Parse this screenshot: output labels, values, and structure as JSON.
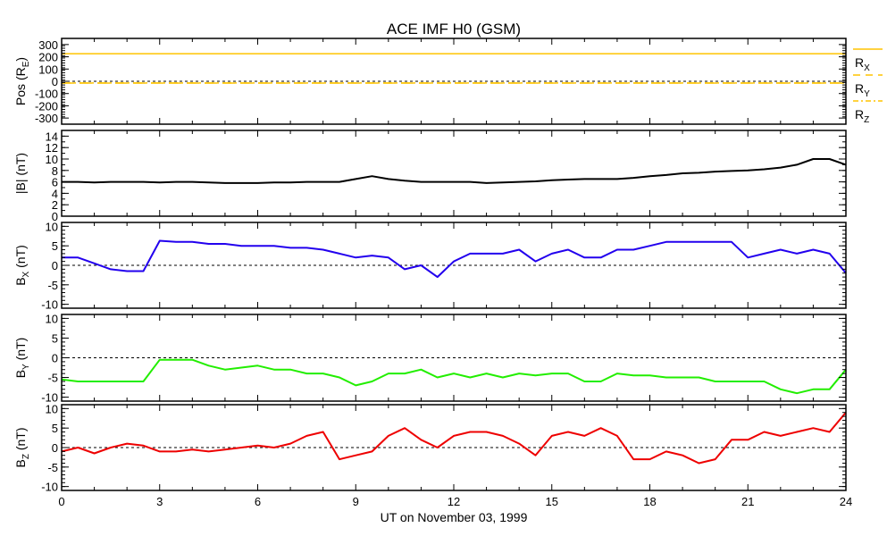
{
  "chart_data": {
    "type": "line",
    "title": "ACE IMF H0 (GSM)",
    "xlabel": "UT on November 03, 1999",
    "xlim": [
      0,
      24
    ],
    "xticks": [
      "0",
      "3",
      "6",
      "9",
      "12",
      "15",
      "18",
      "21",
      "24"
    ],
    "x": [
      0,
      0.5,
      1,
      1.5,
      2,
      2.5,
      3,
      3.5,
      4,
      4.5,
      5,
      5.5,
      6,
      6.5,
      7,
      7.5,
      8,
      8.5,
      9,
      9.5,
      10,
      10.5,
      11,
      11.5,
      12,
      12.5,
      13,
      13.5,
      14,
      14.5,
      15,
      15.5,
      16,
      16.5,
      17,
      17.5,
      18,
      18.5,
      19,
      19.5,
      20,
      20.5,
      21,
      21.5,
      22,
      22.5,
      23,
      23.5,
      24
    ],
    "panels": [
      {
        "id": "pos",
        "ylabel": "Pos (R",
        "ylabel_sub": "E",
        "ylabel_end": ")",
        "ylim": [
          -350,
          350
        ],
        "yticks": [
          -300,
          -200,
          -100,
          0,
          100,
          200,
          300
        ],
        "ytick_labels": [
          "-300",
          "-200",
          "-100",
          "0",
          "100",
          "200",
          "300"
        ],
        "zero_line": true,
        "series": [
          {
            "name": "R",
            "sub": "X",
            "color": "#ffc400",
            "dash": "",
            "constant": 225
          },
          {
            "name": "R",
            "sub": "Y",
            "color": "#ffc400",
            "dash": "14,6",
            "constant": -15
          },
          {
            "name": "R",
            "sub": "Z",
            "color": "#ffc400",
            "dash": "10,4,2,4",
            "constant": -14
          }
        ]
      },
      {
        "id": "bmag",
        "ylabel": "|B| (nT)",
        "ylim": [
          0,
          15
        ],
        "yticks": [
          0,
          2,
          4,
          6,
          8,
          10,
          12,
          14
        ],
        "ytick_labels": [
          "0",
          "2",
          "4",
          "6",
          "8",
          "10",
          "12",
          "14"
        ],
        "zero_line": false,
        "series": [
          {
            "name": "|B|",
            "color": "#000000",
            "values": [
              6,
              6,
              5.9,
              6,
              6,
              6,
              5.9,
              6,
              6,
              5.9,
              5.8,
              5.8,
              5.8,
              5.9,
              5.9,
              6,
              6,
              6,
              6.5,
              7,
              6.5,
              6.2,
              6,
              6,
              6,
              6,
              5.8,
              5.9,
              6,
              6.1,
              6.3,
              6.4,
              6.5,
              6.5,
              6.5,
              6.7,
              7,
              7.2,
              7.5,
              7.6,
              7.8,
              7.9,
              8,
              8.2,
              8.5,
              9,
              10,
              10,
              9
            ]
          }
        ]
      },
      {
        "id": "bx",
        "ylabel": "B",
        "ylabel_sub": "X",
        "ylabel_end": " (nT)",
        "ylim": [
          -11,
          11
        ],
        "yticks": [
          -10,
          -5,
          0,
          5,
          10
        ],
        "ytick_labels": [
          "-10",
          "-5",
          "0",
          "5",
          "10"
        ],
        "zero_line": true,
        "series": [
          {
            "name": "Bx",
            "color": "#2200ee",
            "values": [
              2,
              2,
              0.5,
              -1,
              -1.5,
              -1.5,
              6.3,
              6,
              6,
              5.5,
              5.5,
              5,
              5,
              5,
              4.5,
              4.5,
              4,
              3,
              2,
              2.5,
              2,
              -1,
              0,
              -3,
              1,
              3,
              3,
              3,
              4,
              1,
              3,
              4,
              2,
              2,
              4,
              4,
              5,
              6,
              6,
              6,
              6,
              6,
              2,
              3,
              4,
              3,
              4,
              3,
              -2
            ]
          }
        ]
      },
      {
        "id": "by",
        "ylabel": "B",
        "ylabel_sub": "Y",
        "ylabel_end": " (nT)",
        "ylim": [
          -11,
          11
        ],
        "yticks": [
          -10,
          -5,
          0,
          5,
          10
        ],
        "ytick_labels": [
          "-10",
          "-5",
          "0",
          "5",
          "10"
        ],
        "zero_line": true,
        "series": [
          {
            "name": "By",
            "color": "#22ee00",
            "values": [
              -5.5,
              -6,
              -6,
              -6,
              -6,
              -6,
              -0.5,
              -0.5,
              -0.5,
              -2,
              -3,
              -2.5,
              -2,
              -3,
              -3,
              -4,
              -4,
              -5,
              -7,
              -6,
              -4,
              -4,
              -3,
              -5,
              -4,
              -5,
              -4,
              -5,
              -4,
              -4.5,
              -4,
              -4,
              -6,
              -6,
              -4,
              -4.5,
              -4.5,
              -5,
              -5,
              -5,
              -6,
              -6,
              -6,
              -6,
              -8,
              -9,
              -8,
              -8,
              -3
            ]
          }
        ]
      },
      {
        "id": "bz",
        "ylabel": "B",
        "ylabel_sub": "Z",
        "ylabel_end": " (nT)",
        "ylim": [
          -11,
          11
        ],
        "yticks": [
          -10,
          -5,
          0,
          5,
          10
        ],
        "ytick_labels": [
          "-10",
          "-5",
          "0",
          "5",
          "10"
        ],
        "zero_line": true,
        "series": [
          {
            "name": "Bz",
            "color": "#ee0000",
            "values": [
              -1,
              0,
              -1.5,
              0,
              1,
              0.5,
              -1,
              -1,
              -0.5,
              -1,
              -0.5,
              0,
              0.5,
              0,
              1,
              3,
              4,
              -3,
              -2,
              -1,
              3,
              5,
              2,
              0,
              3,
              4,
              4,
              3,
              1,
              -2,
              3,
              4,
              3,
              5,
              3,
              -3,
              -3,
              -1,
              -2,
              -4,
              -3,
              2,
              2,
              4,
              3,
              4,
              5,
              4,
              9
            ]
          }
        ]
      }
    ]
  }
}
